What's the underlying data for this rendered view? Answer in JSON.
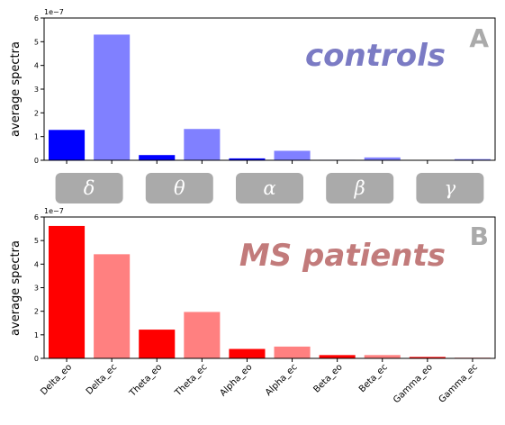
{
  "chart_data": [
    {
      "type": "bar",
      "panel_label": "A",
      "annotation": "controls",
      "annotation_color": "#7b7bc4",
      "ylabel": "average spectra",
      "y_offset_label": "1e−7",
      "ylim": [
        0,
        6
      ],
      "yticks": [
        "0",
        "1",
        "2",
        "3",
        "4",
        "5",
        "6"
      ],
      "categories": [
        "Delta_eo",
        "Delta_ec",
        "Theta_eo",
        "Theta_ec",
        "Alpha_eo",
        "Alpha_ec",
        "Beta_eo",
        "Beta_ec",
        "Gamma_eo",
        "Gamma_ec"
      ],
      "values": [
        1.28,
        5.3,
        0.22,
        1.32,
        0.08,
        0.4,
        0.02,
        0.12,
        0.01,
        0.05
      ],
      "colors": [
        "#0000ff",
        "#8080ff",
        "#0000ff",
        "#8080ff",
        "#0000ff",
        "#8080ff",
        "#0000ff",
        "#8080ff",
        "#0000ff",
        "#8080ff"
      ],
      "show_xtick_labels": false
    },
    {
      "type": "bar",
      "panel_label": "B",
      "annotation": "MS patients",
      "annotation_color": "#c27b7b",
      "ylabel": "average spectra",
      "y_offset_label": "1e−7",
      "ylim": [
        0,
        6
      ],
      "yticks": [
        "0",
        "1",
        "2",
        "3",
        "4",
        "5",
        "6"
      ],
      "categories": [
        "Delta_eo",
        "Delta_ec",
        "Theta_eo",
        "Theta_ec",
        "Alpha_eo",
        "Alpha_ec",
        "Beta_eo",
        "Beta_ec",
        "Gamma_eo",
        "Gamma_ec"
      ],
      "values": [
        5.62,
        4.42,
        1.22,
        1.97,
        0.4,
        0.5,
        0.14,
        0.14,
        0.06,
        0.03
      ],
      "colors": [
        "#ff0000",
        "#ff8080",
        "#ff0000",
        "#ff8080",
        "#ff0000",
        "#ff8080",
        "#ff0000",
        "#ff8080",
        "#ff0000",
        "#ff8080"
      ],
      "show_xtick_labels": true
    }
  ],
  "band_labels": [
    "δ",
    "θ",
    "α",
    "β",
    "γ"
  ],
  "band_box_color": "#aaaaaa"
}
